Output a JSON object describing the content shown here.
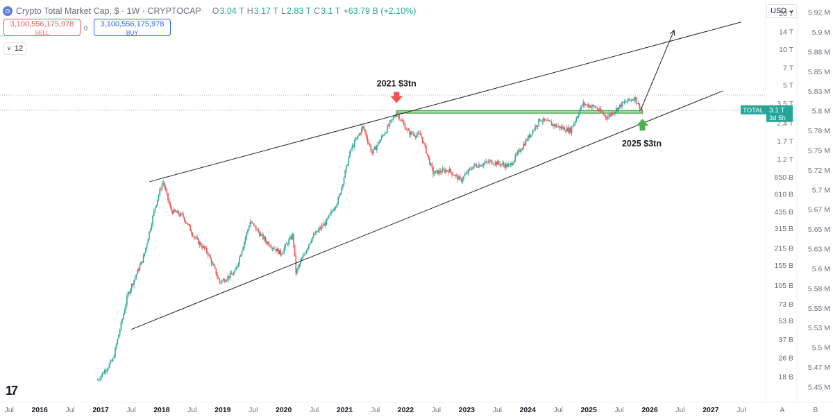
{
  "header": {
    "title": "Crypto Total Market Cap, $ · 1W · CRYPTOCAP",
    "open_label": "O",
    "open": "3.04 T",
    "high_label": "H",
    "high": "3.17 T",
    "low_label": "L",
    "low": "2.83 T",
    "close_label": "C",
    "close": "3.1 T",
    "change": "+63.79 B (+2.10%)"
  },
  "trade": {
    "sell_price": "3,100,556,175,978",
    "sell_label": "SELL",
    "spread": "0",
    "buy_price": "3,100,556,175,978",
    "buy_label": "BUY"
  },
  "indicators": {
    "count": "12"
  },
  "currency": "USD",
  "price_tag": {
    "symbol": "TOTAL",
    "value": "3.1 T",
    "countdown": "3d 5h"
  },
  "colors": {
    "up": "#26a69a",
    "down": "#ef5350",
    "zone": "#4caf50",
    "tag": "#26a69a"
  },
  "chart_data": {
    "type": "candlestick",
    "title": "Crypto Total Market Cap, $ · 1W · CRYPTOCAP",
    "y_scale": "log",
    "ylim": [
      11000000000,
      26000000000000
    ],
    "y_ticks": [
      "20 T",
      "14 T",
      "10 T",
      "7 T",
      "5 T",
      "3.5 T",
      "2.4 T",
      "1.7 T",
      "1.2 T",
      "850 B",
      "610 B",
      "435 B",
      "315 B",
      "215 B",
      "155 B",
      "105 B",
      "73 B",
      "53 B",
      "37 B",
      "26 B",
      "18 B"
    ],
    "y_tick_values": [
      20000000000000.0,
      14000000000000.0,
      10000000000000.0,
      7000000000000.0,
      5000000000000.0,
      3500000000000.0,
      2400000000000.0,
      1700000000000.0,
      1200000000000.0,
      850000000000.0,
      610000000000.0,
      435000000000.0,
      315000000000.0,
      215000000000.0,
      155000000000.0,
      105000000000.0,
      73000000000.0,
      53000000000.0,
      37000000000.0,
      26000000000.0,
      18000000000.0
    ],
    "secondary_axis_ticks": [
      "5.92 M",
      "5.9 M",
      "5.88 M",
      "5.85 M",
      "5.83 M",
      "5.8 M",
      "5.78 M",
      "5.75 M",
      "5.72 M",
      "5.7 M",
      "5.67 M",
      "5.65 M",
      "5.63 M",
      "5.6 M",
      "5.58 M",
      "5.55 M",
      "5.53 M",
      "5.5 M",
      "5.47 M",
      "5.45 M"
    ],
    "x_range": [
      2015.35,
      2027.9
    ],
    "x_ticks": [
      {
        "label": "Jul",
        "x": 2015.5
      },
      {
        "label": "2016",
        "x": 2016.0
      },
      {
        "label": "Jul",
        "x": 2016.5
      },
      {
        "label": "2017",
        "x": 2017.0
      },
      {
        "label": "Jul",
        "x": 2017.5
      },
      {
        "label": "2018",
        "x": 2018.0
      },
      {
        "label": "Jul",
        "x": 2018.5
      },
      {
        "label": "2019",
        "x": 2019.0
      },
      {
        "label": "Jul",
        "x": 2019.5
      },
      {
        "label": "2020",
        "x": 2020.0
      },
      {
        "label": "Jul",
        "x": 2020.5
      },
      {
        "label": "2021",
        "x": 2021.0
      },
      {
        "label": "Jul",
        "x": 2021.5
      },
      {
        "label": "2022",
        "x": 2022.0
      },
      {
        "label": "Jul",
        "x": 2022.5
      },
      {
        "label": "2023",
        "x": 2023.0
      },
      {
        "label": "Jul",
        "x": 2023.5
      },
      {
        "label": "2024",
        "x": 2024.0
      },
      {
        "label": "Jul",
        "x": 2024.5
      },
      {
        "label": "2025",
        "x": 2025.0
      },
      {
        "label": "Jul",
        "x": 2025.5
      },
      {
        "label": "2026",
        "x": 2026.0
      },
      {
        "label": "Jul",
        "x": 2026.5
      },
      {
        "label": "2027",
        "x": 2027.0
      },
      {
        "label": "Jul",
        "x": 2027.5
      }
    ],
    "price_path": [
      [
        2016.95,
        17000000000.0
      ],
      [
        2017.2,
        25000000000.0
      ],
      [
        2017.45,
        90000000000.0
      ],
      [
        2017.7,
        180000000000.0
      ],
      [
        2017.9,
        500000000000.0
      ],
      [
        2018.02,
        790000000000.0
      ],
      [
        2018.15,
        450000000000.0
      ],
      [
        2018.35,
        400000000000.0
      ],
      [
        2018.55,
        260000000000.0
      ],
      [
        2018.75,
        200000000000.0
      ],
      [
        2018.95,
        112000000000.0
      ],
      [
        2019.2,
        135000000000.0
      ],
      [
        2019.45,
        360000000000.0
      ],
      [
        2019.7,
        250000000000.0
      ],
      [
        2019.95,
        195000000000.0
      ],
      [
        2020.15,
        280000000000.0
      ],
      [
        2020.2,
        135000000000.0
      ],
      [
        2020.45,
        260000000000.0
      ],
      [
        2020.7,
        360000000000.0
      ],
      [
        2020.9,
        560000000000.0
      ],
      [
        2021.1,
        1450000000000.0
      ],
      [
        2021.3,
        2250000000000.0
      ],
      [
        2021.45,
        1350000000000.0
      ],
      [
        2021.65,
        2000000000000.0
      ],
      [
        2021.85,
        2950000000000.0
      ],
      [
        2022.05,
        2000000000000.0
      ],
      [
        2022.25,
        1900000000000.0
      ],
      [
        2022.45,
        920000000000.0
      ],
      [
        2022.7,
        980000000000.0
      ],
      [
        2022.9,
        800000000000.0
      ],
      [
        2023.1,
        1050000000000.0
      ],
      [
        2023.4,
        1150000000000.0
      ],
      [
        2023.7,
        1050000000000.0
      ],
      [
        2023.95,
        1650000000000.0
      ],
      [
        2024.2,
        2600000000000.0
      ],
      [
        2024.5,
        2250000000000.0
      ],
      [
        2024.7,
        2100000000000.0
      ],
      [
        2024.9,
        3500000000000.0
      ],
      [
        2025.1,
        3300000000000.0
      ],
      [
        2025.3,
        2700000000000.0
      ],
      [
        2025.55,
        3500000000000.0
      ],
      [
        2025.75,
        3950000000000.0
      ],
      [
        2025.88,
        3000000000000.0
      ]
    ],
    "trend_lines": [
      {
        "name": "upper",
        "from": [
          2017.8,
          780000000000.0
        ],
        "to": [
          2027.5,
          17000000000000.0
        ]
      },
      {
        "name": "lower",
        "from": [
          2017.5,
          45000000000.0
        ],
        "to": [
          2027.2,
          4500000000000.0
        ]
      },
      {
        "name": "projection",
        "from": [
          2025.85,
          3100000000000.0
        ],
        "to": [
          2026.4,
          14500000000000.0
        ]
      }
    ],
    "support_zone": {
      "x_start": 2021.85,
      "x_end": 2025.88,
      "y_low": 2930000000000.0,
      "y_high": 3070000000000.0
    },
    "reference_lines": [
      4150000000000.0,
      3100000000000.0
    ],
    "annotations": [
      {
        "text": "2021 $3tn",
        "x": 2021.85,
        "y": 2950000000000.0,
        "marker": "down-arrow",
        "color": "#ef5350"
      },
      {
        "text": "2025 $3tn",
        "x": 2025.88,
        "y": 3000000000000.0,
        "marker": "up-arrow",
        "color": "#4caf50"
      }
    ],
    "axis_extras": {
      "auto_label": "A",
      "log_label": "B"
    }
  }
}
